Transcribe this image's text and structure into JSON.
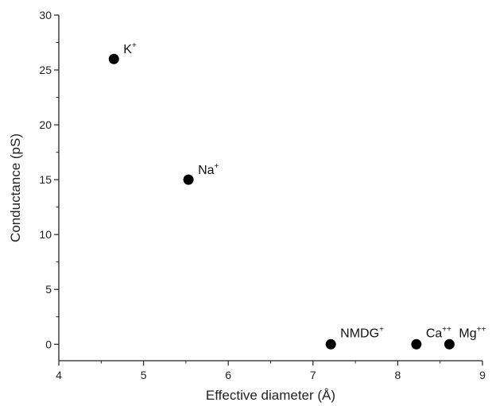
{
  "chart_data": {
    "type": "scatter",
    "xlabel": "Effective diameter (Å)",
    "ylabel": "Conductance (pS)",
    "xlim": [
      4,
      9
    ],
    "ylim": [
      -1.5,
      30
    ],
    "x_ticks": [
      4,
      5,
      6,
      7,
      8,
      9
    ],
    "y_ticks": [
      0,
      5,
      10,
      15,
      20,
      25,
      30
    ],
    "grid": false,
    "marker_color": "#000000",
    "points": [
      {
        "label": "K",
        "charge": "+",
        "x": 4.65,
        "y": 26
      },
      {
        "label": "Na",
        "charge": "+",
        "x": 5.53,
        "y": 15
      },
      {
        "label": "NMDG",
        "charge": "+",
        "x": 7.21,
        "y": 0
      },
      {
        "label": "Ca",
        "charge": "++",
        "x": 8.22,
        "y": 0
      },
      {
        "label": "Mg",
        "charge": "++",
        "x": 8.61,
        "y": 0
      }
    ]
  }
}
